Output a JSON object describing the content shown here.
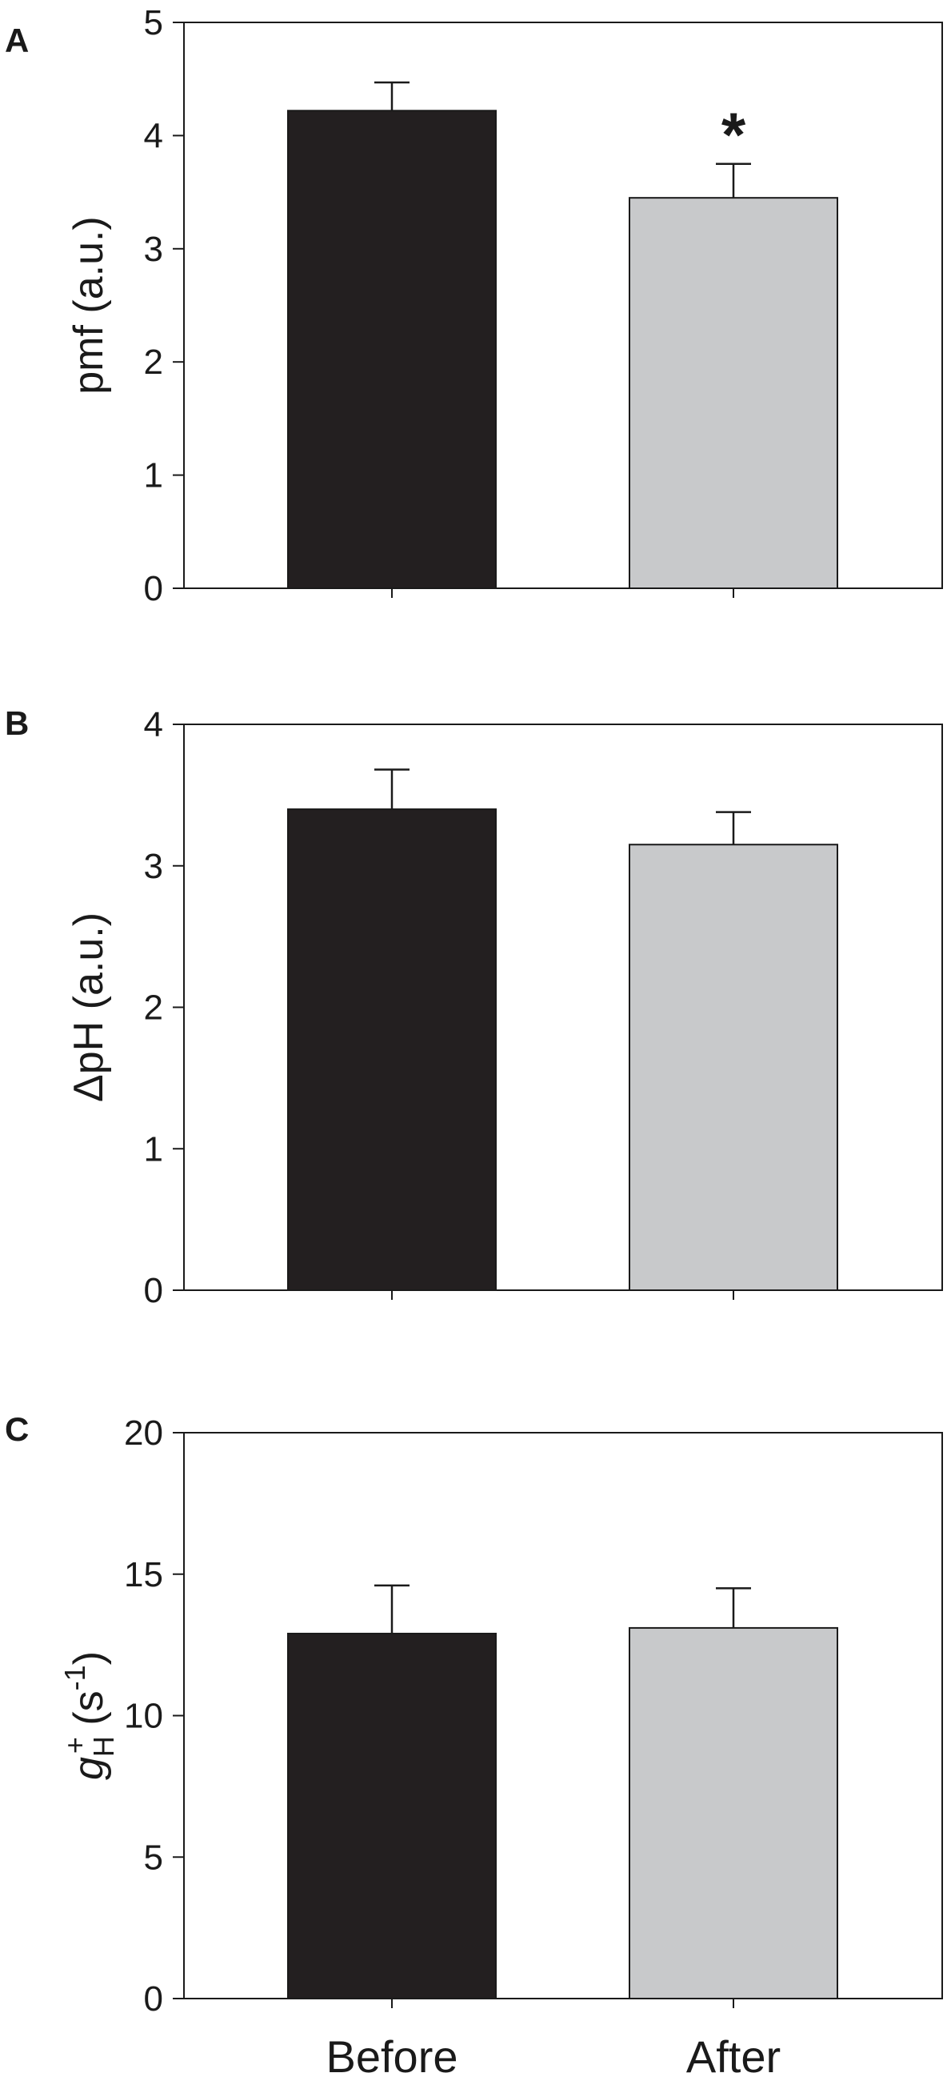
{
  "colors": {
    "before_bar": "#231f20",
    "after_bar": "#c8c9cb",
    "axis": "#1a1a1a",
    "error_bar": "#1a1a1a"
  },
  "x_categories": [
    "Before",
    "After"
  ],
  "chart_data": [
    {
      "type": "bar",
      "panel": "A",
      "categories": [
        "Before",
        "After"
      ],
      "values": [
        4.22,
        3.45
      ],
      "errors": [
        0.25,
        0.3
      ],
      "ylabel": "pmf (a.u.)",
      "ylim": [
        0,
        5
      ],
      "yticks": [
        0,
        1,
        2,
        3,
        4,
        5
      ],
      "annotations": [
        {
          "category": "After",
          "text": "*"
        }
      ]
    },
    {
      "type": "bar",
      "panel": "B",
      "categories": [
        "Before",
        "After"
      ],
      "values": [
        3.4,
        3.15
      ],
      "errors": [
        0.28,
        0.23
      ],
      "ylabel": "ΔpH (a.u.)",
      "ylim": [
        0,
        4
      ],
      "yticks": [
        0,
        1,
        2,
        3,
        4
      ],
      "annotations": []
    },
    {
      "type": "bar",
      "panel": "C",
      "categories": [
        "Before",
        "After"
      ],
      "values": [
        12.9,
        13.1
      ],
      "errors": [
        1.7,
        1.4
      ],
      "ylabel": {
        "main": "g",
        "sub": "H",
        "sup": "+",
        "unit_open": " (s",
        "unit_sup": "-1",
        "unit_close": ")"
      },
      "ylim": [
        0,
        20
      ],
      "yticks": [
        0,
        5,
        10,
        15,
        20
      ],
      "annotations": []
    }
  ]
}
